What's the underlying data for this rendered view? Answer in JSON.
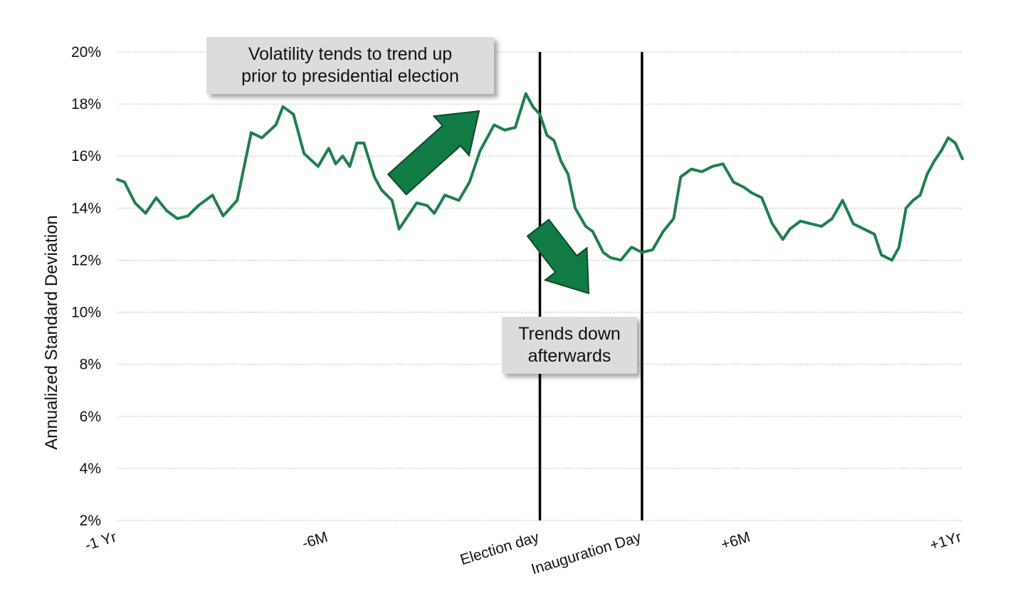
{
  "chart_data": {
    "type": "line",
    "title": "",
    "ylabel": "Annualized Standard Deviation",
    "xlabel": "",
    "ylim": [
      2,
      20
    ],
    "yticks": [
      2,
      4,
      6,
      8,
      10,
      12,
      14,
      16,
      18,
      20
    ],
    "ytick_labels": [
      "2%",
      "4%",
      "6%",
      "8%",
      "10%",
      "12%",
      "14%",
      "16%",
      "18%",
      "20%"
    ],
    "x_range_months": [
      -12,
      12
    ],
    "xtick_positions": [
      -12,
      -6,
      0,
      2.9,
      6,
      12
    ],
    "xtick_labels": [
      "-1 Yr",
      "-6M",
      "Election day",
      "Inauguration Day",
      "+6M",
      "+1Yr"
    ],
    "grid": "horizontal dotted",
    "line_color": "#1e7f4e",
    "vertical_markers": [
      {
        "label": "Election day",
        "x": 0
      },
      {
        "label": "Inauguration Day",
        "x": 2.9
      }
    ],
    "series": [
      {
        "x": [
          -12,
          -11.8,
          -11.5,
          -11.2,
          -10.9,
          -10.6,
          -10.3,
          -10.0,
          -9.7,
          -9.3,
          -9.0,
          -8.6,
          -8.2,
          -7.9,
          -7.5,
          -7.3,
          -7.0,
          -6.7,
          -6.3,
          -6.0,
          -5.8,
          -5.6,
          -5.4,
          -5.2,
          -5.0,
          -4.7,
          -4.5,
          -4.2,
          -4.0,
          -3.8,
          -3.5,
          -3.2,
          -3.0,
          -2.7,
          -2.3,
          -2.0,
          -1.7,
          -1.3,
          -1.0,
          -0.7,
          -0.4,
          -0.2,
          0.0,
          0.2,
          0.4,
          0.6,
          0.8,
          1.0,
          1.3,
          1.5,
          1.8,
          2.0,
          2.3,
          2.6,
          2.9,
          3.2,
          3.5,
          3.8,
          4.0,
          4.3,
          4.6,
          4.9,
          5.2,
          5.5,
          5.8,
          6.0,
          6.3,
          6.6,
          6.9,
          7.1,
          7.4,
          7.7,
          8.0,
          8.3,
          8.6,
          8.9,
          9.2,
          9.5,
          9.7,
          10.0,
          10.2,
          10.4,
          10.6,
          10.8,
          11.0,
          11.2,
          11.4,
          11.6,
          11.8,
          12.0
        ],
        "y": [
          15.1,
          15.0,
          14.2,
          13.8,
          14.4,
          13.9,
          13.6,
          13.7,
          14.1,
          14.5,
          13.7,
          14.3,
          16.9,
          16.7,
          17.2,
          17.9,
          17.6,
          16.1,
          15.6,
          16.3,
          15.7,
          16.0,
          15.6,
          16.5,
          16.5,
          15.2,
          14.7,
          14.3,
          13.2,
          13.6,
          14.2,
          14.1,
          13.8,
          14.5,
          14.3,
          15.0,
          16.2,
          17.2,
          17.0,
          17.1,
          18.4,
          17.9,
          17.6,
          16.8,
          16.6,
          15.8,
          15.3,
          14.0,
          13.3,
          13.1,
          12.3,
          12.1,
          12.0,
          12.5,
          12.3,
          12.4,
          13.1,
          13.6,
          15.2,
          15.5,
          15.4,
          15.6,
          15.7,
          15.0,
          14.8,
          14.6,
          14.4,
          13.4,
          12.8,
          13.2,
          13.5,
          13.4,
          13.3,
          13.6,
          14.3,
          13.4,
          13.2,
          13.0,
          12.2,
          12.0,
          12.5,
          14.0,
          14.3,
          14.5,
          15.3,
          15.8,
          16.2,
          16.7,
          16.5,
          15.9
        ]
      }
    ]
  },
  "annotations": {
    "up_text": "Volatility tends to trend up\nprior to presidential election",
    "down_text": "Trends down\nafterwards",
    "arrow_color": "#117a45"
  }
}
